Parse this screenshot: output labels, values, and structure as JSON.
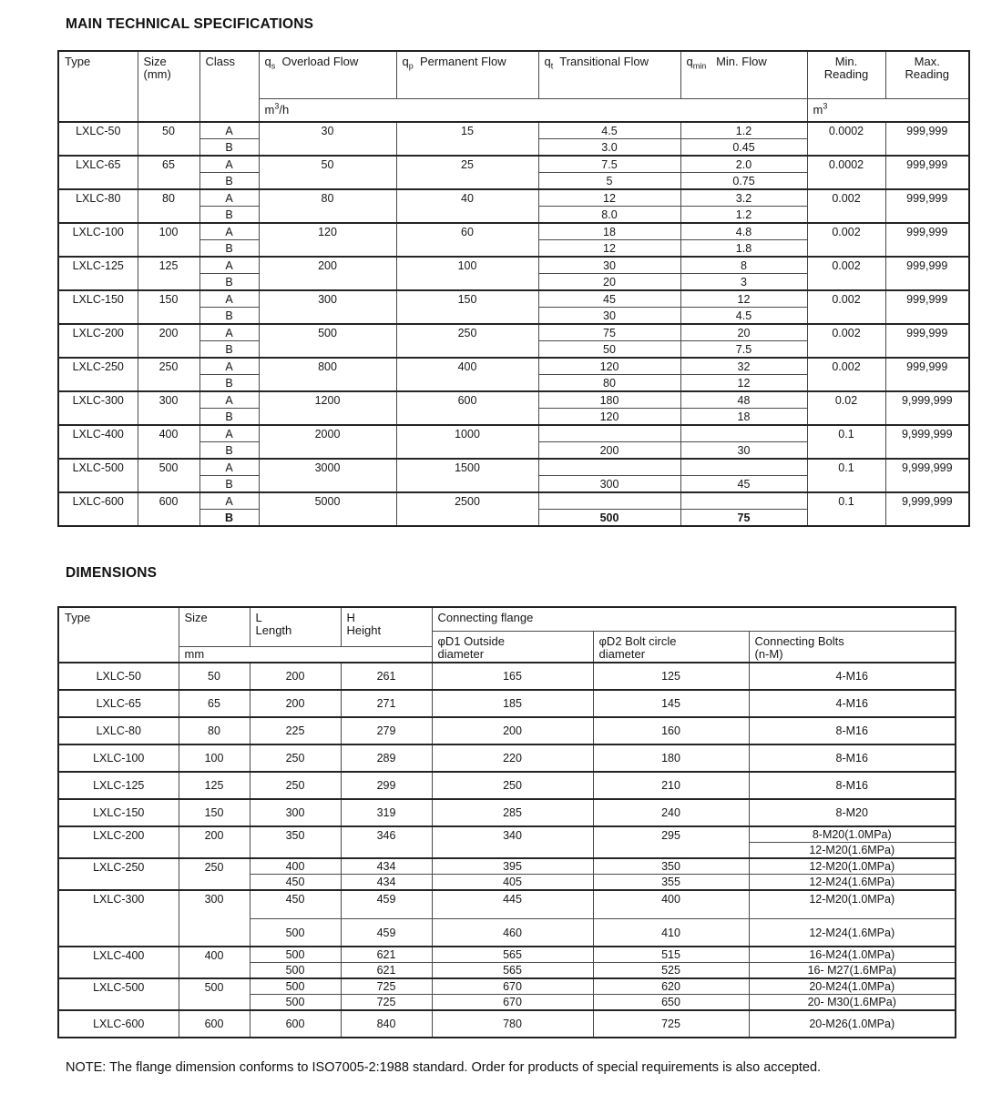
{
  "page": {
    "spec_title": "MAIN TECHNICAL SPECIFICATIONS",
    "dim_title": "DIMENSIONS",
    "note": "NOTE: The flange dimension conforms to ISO7005-2:1988 standard. Order for products of special requirements is also accepted."
  },
  "spec_table": {
    "headers": {
      "type": "Type",
      "size": "Size\n(mm)",
      "class_label": "Class",
      "qs": {
        "sym": "q",
        "sub": "s",
        "label": "Overload Flow"
      },
      "qp": {
        "sym": "q",
        "sub": "p",
        "label": "Permanent Flow"
      },
      "qt": {
        "sym": "q",
        "sub": "t",
        "label": "Transitional Flow"
      },
      "qmin": {
        "sym": "q",
        "sub": "min",
        "label": "Min. Flow"
      },
      "min_reading": "Min.\nReading",
      "max_reading": "Max.\nReading",
      "unit_flow": {
        "base": "m",
        "sup": "3",
        "rest": "/h"
      },
      "unit_reading": {
        "base": "m",
        "sup": "3",
        "rest": ""
      }
    },
    "rows": [
      {
        "type": "LXLC-50",
        "size": "50",
        "qs": "30",
        "qp": "15",
        "a": {
          "cls": "A",
          "qt": "4.5",
          "qmin": "1.2"
        },
        "b": {
          "cls": "B",
          "qt": "3.0",
          "qmin": "0.45"
        },
        "min_reading": "0.0002",
        "max_reading": "999,999"
      },
      {
        "type": "LXLC-65",
        "size": "65",
        "qs": "50",
        "qp": "25",
        "a": {
          "cls": "A",
          "qt": "7.5",
          "qmin": "2.0"
        },
        "b": {
          "cls": "B",
          "qt": "5",
          "qmin": "0.75"
        },
        "min_reading": "0.0002",
        "max_reading": "999,999"
      },
      {
        "type": "LXLC-80",
        "size": "80",
        "qs": "80",
        "qp": "40",
        "a": {
          "cls": "A",
          "qt": "12",
          "qmin": "3.2"
        },
        "b": {
          "cls": "B",
          "qt": "8.0",
          "qmin": "1.2"
        },
        "min_reading": "0.002",
        "max_reading": "999,999"
      },
      {
        "type": "LXLC-100",
        "size": "100",
        "qs": "120",
        "qp": "60",
        "a": {
          "cls": "A",
          "qt": "18",
          "qmin": "4.8"
        },
        "b": {
          "cls": "B",
          "qt": "12",
          "qmin": "1.8"
        },
        "min_reading": "0.002",
        "max_reading": "999,999"
      },
      {
        "type": "LXLC-125",
        "size": "125",
        "qs": "200",
        "qp": "100",
        "a": {
          "cls": "A",
          "qt": "30",
          "qmin": "8"
        },
        "b": {
          "cls": "B",
          "qt": "20",
          "qmin": "3"
        },
        "min_reading": "0.002",
        "max_reading": "999,999"
      },
      {
        "type": "LXLC-150",
        "size": "150",
        "qs": "300",
        "qp": "150",
        "a": {
          "cls": "A",
          "qt": "45",
          "qmin": "12"
        },
        "b": {
          "cls": "B",
          "qt": "30",
          "qmin": "4.5"
        },
        "min_reading": "0.002",
        "max_reading": "999,999"
      },
      {
        "type": "LXLC-200",
        "size": "200",
        "qs": "500",
        "qp": "250",
        "a": {
          "cls": "A",
          "qt": "75",
          "qmin": "20"
        },
        "b": {
          "cls": "B",
          "qt": "50",
          "qmin": "7.5"
        },
        "min_reading": "0.002",
        "max_reading": "999,999"
      },
      {
        "type": "LXLC-250",
        "size": "250",
        "qs": "800",
        "qp": "400",
        "a": {
          "cls": "A",
          "qt": "120",
          "qmin": "32"
        },
        "b": {
          "cls": "B",
          "qt": "80",
          "qmin": "12"
        },
        "min_reading": "0.002",
        "max_reading": "999,999"
      },
      {
        "type": "LXLC-300",
        "size": "300",
        "qs": "1200",
        "qp": "600",
        "a": {
          "cls": "A",
          "qt": "180",
          "qmin": "48"
        },
        "b": {
          "cls": "B",
          "qt": "120",
          "qmin": "18"
        },
        "min_reading": "0.02",
        "max_reading": "9,999,999"
      },
      {
        "type": "LXLC-400",
        "size": "400",
        "qs": "2000",
        "qp": "1000",
        "a": {
          "cls": "A",
          "qt": "",
          "qmin": ""
        },
        "b": {
          "cls": "B",
          "qt": "200",
          "qmin": "30"
        },
        "min_reading": "0.1",
        "max_reading": "9,999,999"
      },
      {
        "type": "LXLC-500",
        "size": "500",
        "qs": "3000",
        "qp": "1500",
        "a": {
          "cls": "A",
          "qt": "",
          "qmin": ""
        },
        "b": {
          "cls": "B",
          "qt": "300",
          "qmin": "45"
        },
        "min_reading": "0.1",
        "max_reading": "9,999,999"
      },
      {
        "type": "LXLC-600",
        "size": "600",
        "qs": "5000",
        "qp": "2500",
        "a": {
          "cls": "A",
          "qt": "",
          "qmin": ""
        },
        "b": {
          "cls": "B",
          "qt": "500",
          "qmin": "75"
        },
        "min_reading": "0.1",
        "max_reading": "9,999,999",
        "bold_b": true
      }
    ]
  },
  "dim_table": {
    "headers": {
      "type": "Type",
      "size": "Size",
      "length": "L\nLength",
      "height": "H\nHeight",
      "flange": "Connecting flange",
      "d1": "φD1  Outside\ndiameter",
      "d2": "φD2  Bolt circle\ndiameter",
      "bolts": "Connecting  Bolts\n(n-M)",
      "unit": "mm"
    },
    "rows": [
      {
        "type": "LXLC-50",
        "size": "50",
        "subs": [
          {
            "l": "200",
            "h": "261",
            "d1": "165",
            "d2": "125",
            "bolts": "4-M16"
          }
        ]
      },
      {
        "type": "LXLC-65",
        "size": "65",
        "subs": [
          {
            "l": "200",
            "h": "271",
            "d1": "185",
            "d2": "145",
            "bolts": "4-M16"
          }
        ]
      },
      {
        "type": "LXLC-80",
        "size": "80",
        "subs": [
          {
            "l": "225",
            "h": "279",
            "d1": "200",
            "d2": "160",
            "bolts": "8-M16"
          }
        ]
      },
      {
        "type": "LXLC-100",
        "size": "100",
        "subs": [
          {
            "l": "250",
            "h": "289",
            "d1": "220",
            "d2": "180",
            "bolts": "8-M16"
          }
        ]
      },
      {
        "type": "LXLC-125",
        "size": "125",
        "subs": [
          {
            "l": "250",
            "h": "299",
            "d1": "250",
            "d2": "210",
            "bolts": "8-M16"
          }
        ]
      },
      {
        "type": "LXLC-150",
        "size": "150",
        "subs": [
          {
            "l": "300",
            "h": "319",
            "d1": "285",
            "d2": "240",
            "bolts": "8-M20"
          }
        ]
      },
      {
        "type": "LXLC-200",
        "size": "200",
        "subs": [
          {
            "l": "350",
            "h": "346",
            "d1": "340",
            "d2": "295",
            "bolts": "8-M20(1.0MPa)"
          },
          {
            "bolts": "12-M20(1.6MPa)"
          }
        ]
      },
      {
        "type": "LXLC-250",
        "size": "250",
        "subs": [
          {
            "l": "400",
            "h": "434",
            "d1": "395",
            "d2": "350",
            "bolts": "12-M20(1.0MPa)"
          },
          {
            "l": "450",
            "h": "434",
            "d1": "405",
            "d2": "355",
            "bolts": "12-M24(1.6MPa)"
          }
        ]
      },
      {
        "type": "LXLC-300",
        "size": "300",
        "tall": true,
        "subs": [
          {
            "l": "450",
            "h": "459",
            "d1": "445",
            "d2": "400",
            "bolts": "12-M20(1.0MPa)"
          },
          {
            "l": "500",
            "h": "459",
            "d1": "460",
            "d2": "410",
            "bolts": "12-M24(1.6MPa)"
          }
        ]
      },
      {
        "type": "LXLC-400",
        "size": "400",
        "subs": [
          {
            "l": "500",
            "h": "621",
            "d1": "565",
            "d2": "515",
            "bolts": "16-M24(1.0MPa)"
          },
          {
            "l": "500",
            "h": "621",
            "d1": "565",
            "d2": "525",
            "bolts": "16- M27(1.6MPa)"
          }
        ]
      },
      {
        "type": "LXLC-500",
        "size": "500",
        "subs": [
          {
            "l": "500",
            "h": "725",
            "d1": "670",
            "d2": "620",
            "bolts": "20-M24(1.0MPa)"
          },
          {
            "l": "500",
            "h": "725",
            "d1": "670",
            "d2": "650",
            "bolts": "20- M30(1.6MPa)"
          }
        ]
      },
      {
        "type": "LXLC-600",
        "size": "600",
        "subs": [
          {
            "l": "600",
            "h": "840",
            "d1": "780",
            "d2": "725",
            "bolts": "20-M26(1.0MPa)"
          }
        ]
      }
    ]
  }
}
